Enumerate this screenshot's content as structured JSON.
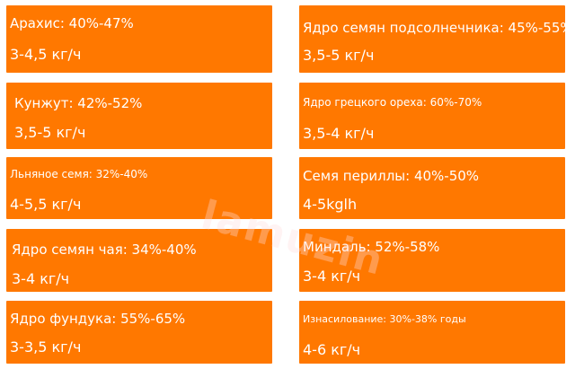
{
  "cards": [
    {
      "title": "Арахис: 40%-47%",
      "rate": "3-4,5 кг/ч"
    },
    {
      "title": "Ядро семян подсолнечника: 45%-55%",
      "rate": "3,5-5 кг/ч"
    },
    {
      "title": "Кунжут: 42%-52%",
      "rate": "3,5-5 кг/ч"
    },
    {
      "title": "Ядро грецкого ореха: 60%-70%",
      "rate": "3,5-4 кг/ч"
    },
    {
      "title": "Льняное семя: 32%-40%",
      "rate": "4-5,5 кг/ч"
    },
    {
      "title": "Семя периллы: 40%-50%",
      "rate": "4-5kglh"
    },
    {
      "title": "Ядро семян чая: 34%-40%",
      "rate": "3-4 кг/ч"
    },
    {
      "title": "Миндаль: 52%-58%",
      "rate": "3-4 кг/ч"
    },
    {
      "title": "Ядро фундука: 55%-65%",
      "rate": "3-3,5 кг/ч"
    },
    {
      "title": "Изнасилование: 30%-38% годы",
      "rate": "4-6 кг/ч"
    }
  ],
  "watermark": "lamuzin",
  "colors": {
    "card": "#ff7800",
    "text": "#ffffff"
  }
}
